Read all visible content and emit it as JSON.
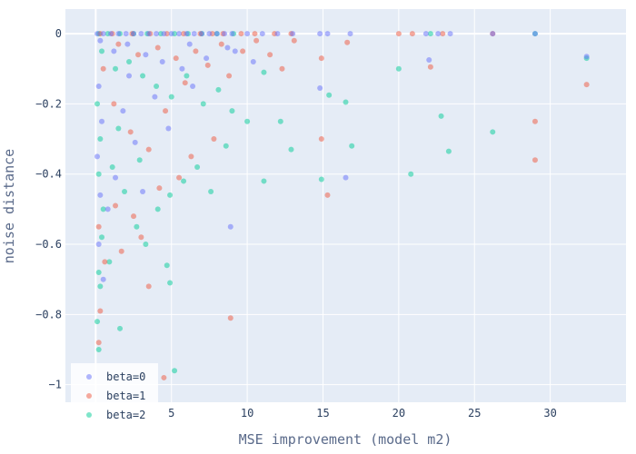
{
  "chart_data": {
    "type": "scatter",
    "title": "",
    "xlabel": "MSE improvement (model m2)",
    "ylabel": "noise distance",
    "xlim": [
      -2,
      35
    ],
    "ylim": [
      -1.05,
      0.07
    ],
    "x_ticks": [
      {
        "value": 5,
        "label": "5"
      },
      {
        "value": 10,
        "label": "10"
      },
      {
        "value": 15,
        "label": "15"
      },
      {
        "value": 20,
        "label": "20"
      },
      {
        "value": 25,
        "label": "25"
      },
      {
        "value": 30,
        "label": "30"
      }
    ],
    "y_ticks": [
      {
        "value": 0,
        "label": "0"
      },
      {
        "value": -0.2,
        "label": "−0.2"
      },
      {
        "value": -0.4,
        "label": "−0.4"
      },
      {
        "value": -0.6,
        "label": "−0.6"
      },
      {
        "value": -0.8,
        "label": "−0.8"
      },
      {
        "value": -1,
        "label": "−1"
      }
    ],
    "grid": true,
    "plot_background": "#e5ecf6",
    "legend_position": "bottom-left",
    "series": [
      {
        "name": "beta=0",
        "color": "#636efa",
        "points": [
          [
            0.1,
            0
          ],
          [
            0.5,
            0
          ],
          [
            1,
            0
          ],
          [
            1.5,
            0
          ],
          [
            2,
            0
          ],
          [
            2.5,
            0
          ],
          [
            3,
            0
          ],
          [
            3.5,
            0
          ],
          [
            4,
            0
          ],
          [
            4.5,
            0
          ],
          [
            5,
            0
          ],
          [
            5.5,
            0
          ],
          [
            6,
            0
          ],
          [
            6.5,
            0
          ],
          [
            7,
            0
          ],
          [
            7.5,
            0
          ],
          [
            8,
            0
          ],
          [
            8.5,
            0
          ],
          [
            9,
            0
          ],
          [
            10,
            0
          ],
          [
            11,
            0
          ],
          [
            12,
            0
          ],
          [
            13,
            0
          ],
          [
            14.8,
            0
          ],
          [
            15.3,
            0
          ],
          [
            16.8,
            0
          ],
          [
            21.8,
            0
          ],
          [
            22.6,
            0
          ],
          [
            23.4,
            0
          ],
          [
            26.2,
            0
          ],
          [
            29,
            0
          ],
          [
            0.3,
            -0.02
          ],
          [
            1.2,
            -0.05
          ],
          [
            2.1,
            -0.03
          ],
          [
            3.3,
            -0.06
          ],
          [
            4.4,
            -0.08
          ],
          [
            5.7,
            -0.1
          ],
          [
            6.2,
            -0.03
          ],
          [
            7.3,
            -0.07
          ],
          [
            8.7,
            -0.04
          ],
          [
            9.2,
            -0.05
          ],
          [
            10.4,
            -0.08
          ],
          [
            22,
            -0.075
          ],
          [
            32.4,
            -0.065
          ],
          [
            14.8,
            -0.155
          ],
          [
            16.5,
            -0.41
          ],
          [
            8.9,
            -0.55
          ],
          [
            0.2,
            -0.15
          ],
          [
            0.4,
            -0.25
          ],
          [
            0.1,
            -0.35
          ],
          [
            0.3,
            -0.46
          ],
          [
            0.2,
            -0.6
          ],
          [
            0.5,
            -0.7
          ],
          [
            1.8,
            -0.22
          ],
          [
            2.6,
            -0.31
          ],
          [
            3.9,
            -0.18
          ],
          [
            1.3,
            -0.41
          ],
          [
            2.2,
            -0.12
          ],
          [
            4.8,
            -0.27
          ],
          [
            6.4,
            -0.15
          ],
          [
            0.8,
            -0.5
          ],
          [
            3.1,
            -0.45
          ]
        ]
      },
      {
        "name": "beta=1",
        "color": "#ef553b",
        "points": [
          [
            0.3,
            0
          ],
          [
            1.1,
            0
          ],
          [
            2.4,
            0
          ],
          [
            3.6,
            0
          ],
          [
            4.7,
            0
          ],
          [
            5.8,
            0
          ],
          [
            6.9,
            0
          ],
          [
            7.7,
            0
          ],
          [
            8.4,
            0
          ],
          [
            9.6,
            0
          ],
          [
            10.5,
            0
          ],
          [
            11.8,
            0
          ],
          [
            12.9,
            0
          ],
          [
            20,
            0
          ],
          [
            20.9,
            0
          ],
          [
            22.9,
            0
          ],
          [
            26.2,
            0
          ],
          [
            1.5,
            -0.03
          ],
          [
            2.8,
            -0.06
          ],
          [
            4.1,
            -0.04
          ],
          [
            5.3,
            -0.07
          ],
          [
            6.6,
            -0.05
          ],
          [
            7.4,
            -0.09
          ],
          [
            8.3,
            -0.03
          ],
          [
            9.7,
            -0.05
          ],
          [
            10.6,
            -0.02
          ],
          [
            11.5,
            -0.06
          ],
          [
            12.3,
            -0.1
          ],
          [
            13.1,
            -0.02
          ],
          [
            14.9,
            -0.07
          ],
          [
            16.6,
            -0.025
          ],
          [
            22.1,
            -0.095
          ],
          [
            32.4,
            -0.145
          ],
          [
            29,
            -0.25
          ],
          [
            29,
            -0.36
          ],
          [
            15.3,
            -0.46
          ],
          [
            14.9,
            -0.3
          ],
          [
            0.5,
            -0.1
          ],
          [
            1.2,
            -0.2
          ],
          [
            2.3,
            -0.28
          ],
          [
            3.5,
            -0.33
          ],
          [
            4.6,
            -0.22
          ],
          [
            5.9,
            -0.14
          ],
          [
            6.3,
            -0.35
          ],
          [
            7.8,
            -0.3
          ],
          [
            8.8,
            -0.12
          ],
          [
            0.2,
            -0.55
          ],
          [
            0.6,
            -0.65
          ],
          [
            1.7,
            -0.62
          ],
          [
            3.0,
            -0.58
          ],
          [
            3.5,
            -0.72
          ],
          [
            4.5,
            -0.98
          ],
          [
            8.9,
            -0.81
          ],
          [
            0.3,
            -0.79
          ],
          [
            0.2,
            -0.88
          ],
          [
            1.3,
            -0.49
          ],
          [
            2.5,
            -0.52
          ],
          [
            4.2,
            -0.44
          ],
          [
            5.5,
            -0.41
          ]
        ]
      },
      {
        "name": "beta=2",
        "color": "#00cc96",
        "points": [
          [
            0.2,
            0
          ],
          [
            0.8,
            0
          ],
          [
            1.6,
            0
          ],
          [
            2.5,
            0
          ],
          [
            3.4,
            0
          ],
          [
            4.3,
            0
          ],
          [
            5.2,
            0
          ],
          [
            6.1,
            0
          ],
          [
            7,
            0
          ],
          [
            8,
            0
          ],
          [
            9.1,
            0
          ],
          [
            22.1,
            0
          ],
          [
            29,
            0
          ],
          [
            0.4,
            -0.05
          ],
          [
            1.3,
            -0.1
          ],
          [
            2.2,
            -0.08
          ],
          [
            3.1,
            -0.12
          ],
          [
            4.0,
            -0.15
          ],
          [
            5.0,
            -0.18
          ],
          [
            6.0,
            -0.12
          ],
          [
            7.1,
            -0.2
          ],
          [
            8.1,
            -0.16
          ],
          [
            9.0,
            -0.22
          ],
          [
            10.0,
            -0.25
          ],
          [
            11.1,
            -0.11
          ],
          [
            12.2,
            -0.25
          ],
          [
            12.9,
            -0.33
          ],
          [
            16.9,
            -0.32
          ],
          [
            15.4,
            -0.175
          ],
          [
            16.5,
            -0.195
          ],
          [
            20,
            -0.1
          ],
          [
            22.8,
            -0.235
          ],
          [
            23.3,
            -0.335
          ],
          [
            26.2,
            -0.28
          ],
          [
            20.8,
            -0.4
          ],
          [
            14.9,
            -0.415
          ],
          [
            11.1,
            -0.42
          ],
          [
            32.4,
            -0.07
          ],
          [
            0.1,
            -0.2
          ],
          [
            0.3,
            -0.3
          ],
          [
            0.2,
            -0.4
          ],
          [
            0.5,
            -0.5
          ],
          [
            0.4,
            -0.58
          ],
          [
            0.2,
            -0.68
          ],
          [
            0.3,
            -0.72
          ],
          [
            0.1,
            -0.82
          ],
          [
            0.2,
            -0.9
          ],
          [
            1.1,
            -0.38
          ],
          [
            1.9,
            -0.45
          ],
          [
            2.7,
            -0.55
          ],
          [
            3.3,
            -0.6
          ],
          [
            4.1,
            -0.5
          ],
          [
            4.9,
            -0.46
          ],
          [
            5.8,
            -0.42
          ],
          [
            6.7,
            -0.38
          ],
          [
            7.6,
            -0.45
          ],
          [
            8.6,
            -0.32
          ],
          [
            1.6,
            -0.84
          ],
          [
            4.7,
            -0.66
          ],
          [
            4.9,
            -0.71
          ],
          [
            5.2,
            -0.96
          ],
          [
            1.5,
            -0.27
          ],
          [
            2.9,
            -0.36
          ],
          [
            0.9,
            -0.65
          ]
        ]
      }
    ]
  }
}
